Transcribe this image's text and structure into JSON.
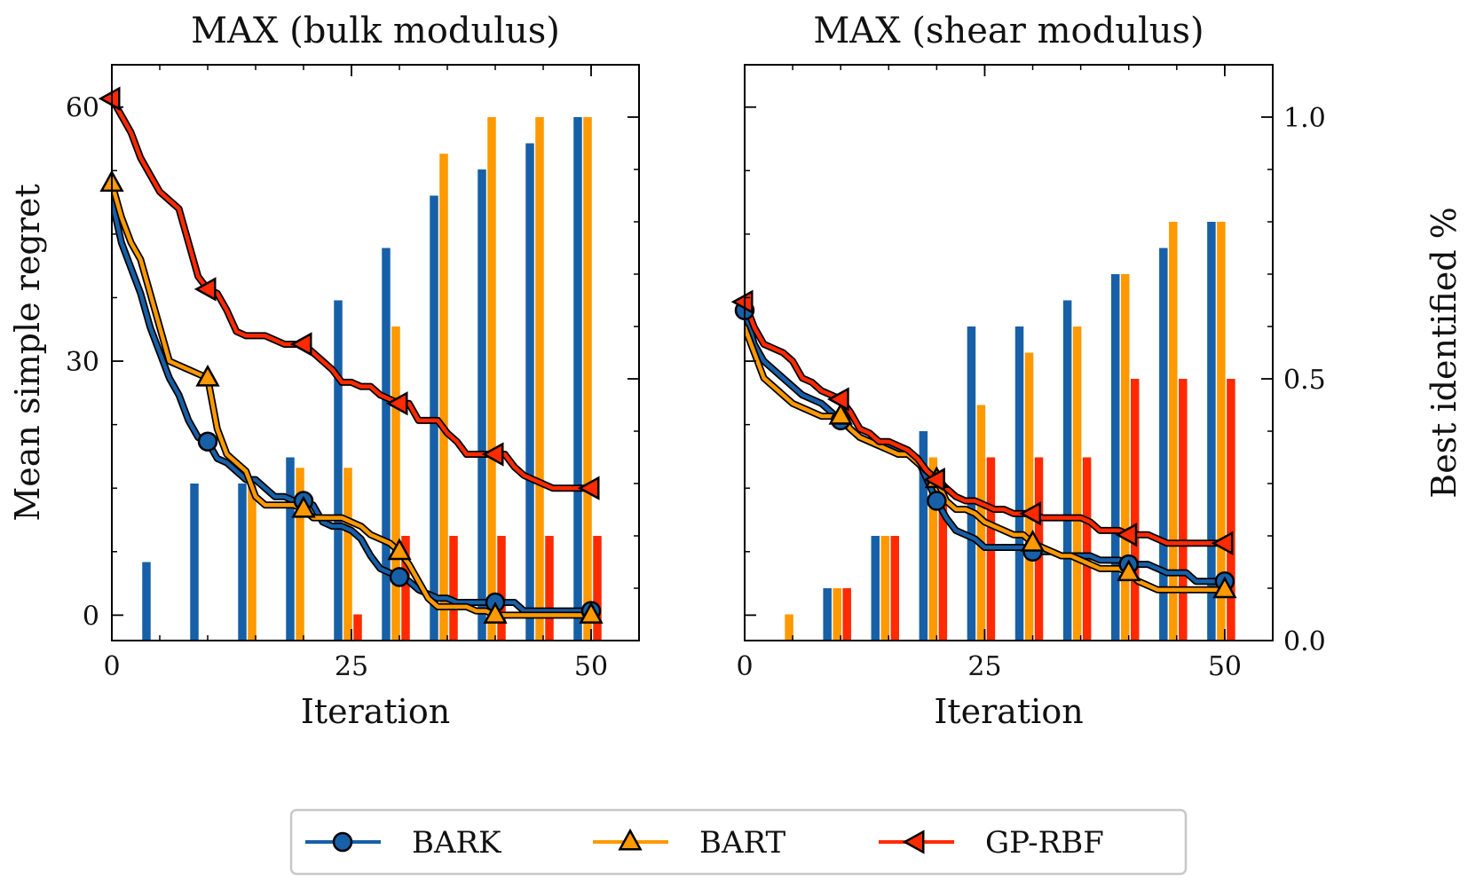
{
  "colors": {
    "BARK": "#1760a8",
    "BART": "#ff9900",
    "GP-RBF": "#ff2a00",
    "frame": "#000000"
  },
  "legend": {
    "items": [
      "BARK",
      "BART",
      "GP-RBF"
    ]
  },
  "chart_data": [
    {
      "type": "line+bar",
      "title": "MAX (bulk modulus)",
      "xlabel": "Iteration",
      "ylabel": "Mean simple regret",
      "xlim": [
        0,
        55
      ],
      "ylim": [
        -3,
        65
      ],
      "xticks": [
        0,
        25,
        50
      ],
      "yticks": [
        0,
        30,
        60
      ],
      "bar_ylim": [
        0,
        1.1
      ],
      "bar_x": [
        5,
        10,
        15,
        20,
        25,
        30,
        35,
        40,
        45,
        50
      ],
      "series": [
        {
          "name": "BARK",
          "marker": "circle",
          "marker_x": [
            10,
            20,
            30,
            40,
            50
          ],
          "x": [
            0,
            1,
            2,
            3,
            4,
            5,
            6,
            7,
            8,
            9,
            10,
            11,
            12,
            13,
            14,
            15,
            16,
            17,
            18,
            19,
            20,
            21,
            22,
            23,
            24,
            25,
            26,
            27,
            28,
            29,
            30,
            31,
            32,
            33,
            34,
            35,
            36,
            37,
            38,
            39,
            40,
            41,
            42,
            43,
            44,
            45,
            46,
            47,
            48,
            49,
            50
          ],
          "values": [
            49,
            44,
            41,
            38,
            34,
            31,
            28,
            26,
            23,
            21,
            20.5,
            18.5,
            18,
            17,
            16,
            16,
            15,
            14,
            14,
            13.5,
            13.5,
            13,
            11,
            10.5,
            10.5,
            10,
            9,
            7,
            5.5,
            5,
            4.5,
            4,
            3,
            2.5,
            2,
            2,
            1.5,
            1.5,
            1.5,
            1.5,
            1.5,
            1.5,
            1.5,
            0.5,
            0.5,
            0.5,
            0.5,
            0.5,
            0.5,
            0.5,
            0.5
          ],
          "bars": [
            0.15,
            0.3,
            0.3,
            0.35,
            0.65,
            0.75,
            0.85,
            0.9,
            0.95,
            1.0
          ]
        },
        {
          "name": "BART",
          "marker": "triangle-up",
          "marker_x": [
            0,
            10,
            20,
            30,
            40,
            50
          ],
          "x": [
            0,
            1,
            2,
            3,
            4,
            5,
            6,
            7,
            8,
            9,
            10,
            11,
            12,
            13,
            14,
            15,
            16,
            17,
            18,
            19,
            20,
            21,
            22,
            23,
            24,
            25,
            26,
            27,
            28,
            29,
            30,
            31,
            32,
            33,
            34,
            35,
            36,
            37,
            38,
            39,
            40,
            41,
            42,
            43,
            44,
            45,
            46,
            47,
            48,
            49,
            50
          ],
          "values": [
            51,
            47,
            44,
            42,
            38,
            34,
            30,
            29.5,
            29,
            28.5,
            28,
            22,
            19,
            18,
            17,
            14,
            13,
            13,
            13,
            13,
            12.5,
            11.5,
            11.5,
            11.5,
            11.5,
            11,
            10.5,
            9.5,
            9,
            8.5,
            7.5,
            6,
            4,
            2,
            1,
            1,
            1,
            1,
            0.5,
            0.5,
            0,
            0,
            0,
            0,
            0,
            0,
            0,
            0,
            0,
            0,
            0
          ],
          "bars": [
            0,
            0,
            0.3,
            0.33,
            0.33,
            0.6,
            0.93,
            1.0,
            1.0,
            1.0
          ]
        },
        {
          "name": "GP-RBF",
          "marker": "triangle-left",
          "marker_x": [
            0,
            10,
            20,
            30,
            40,
            50
          ],
          "x": [
            0,
            1,
            2,
            3,
            4,
            5,
            6,
            7,
            8,
            9,
            10,
            11,
            12,
            13,
            14,
            15,
            16,
            17,
            18,
            19,
            20,
            21,
            22,
            23,
            24,
            25,
            26,
            27,
            28,
            29,
            30,
            31,
            32,
            33,
            34,
            35,
            36,
            37,
            38,
            39,
            40,
            41,
            42,
            43,
            44,
            45,
            46,
            47,
            48,
            49,
            50
          ],
          "values": [
            61,
            59,
            57,
            54,
            52,
            50,
            49,
            48,
            44,
            40,
            38.5,
            38,
            36,
            33.5,
            33,
            33,
            33,
            32.5,
            32,
            32,
            32,
            31,
            30,
            29,
            27.5,
            27.5,
            27,
            27,
            26,
            25.5,
            25,
            25,
            23,
            23,
            23,
            21.5,
            20.5,
            19,
            19,
            19,
            19,
            19,
            17.5,
            16.5,
            16,
            15.5,
            15,
            15,
            15,
            15,
            15
          ],
          "bars": [
            0,
            0,
            0,
            0,
            0.05,
            0.2,
            0.2,
            0.2,
            0.2,
            0.2
          ]
        }
      ]
    },
    {
      "type": "line+bar",
      "title": "MAX (shear modulus)",
      "xlabel": "Iteration",
      "ylabel2": "Best identified %",
      "xlim": [
        0,
        55
      ],
      "ylim": [
        -3,
        65
      ],
      "xticks": [
        0,
        25,
        50
      ],
      "bar_ylim": [
        0,
        1.1
      ],
      "bar_yticks": [
        "0.0",
        "0.5",
        "1.0"
      ],
      "bar_x": [
        5,
        10,
        15,
        20,
        25,
        30,
        35,
        40,
        45,
        50
      ],
      "series": [
        {
          "name": "BARK",
          "marker": "circle",
          "marker_x": [
            0,
            10,
            20,
            30,
            40,
            50
          ],
          "x": [
            0,
            1,
            2,
            3,
            4,
            5,
            6,
            7,
            8,
            9,
            10,
            11,
            12,
            13,
            14,
            15,
            16,
            17,
            18,
            19,
            20,
            21,
            22,
            23,
            24,
            25,
            26,
            27,
            28,
            29,
            30,
            31,
            32,
            33,
            34,
            35,
            36,
            37,
            38,
            39,
            40,
            41,
            42,
            43,
            44,
            45,
            46,
            47,
            48,
            49,
            50
          ],
          "values": [
            36,
            32,
            30,
            29,
            28,
            27,
            26,
            25.5,
            25,
            24,
            23,
            22,
            21,
            20.5,
            20,
            20,
            19.5,
            19,
            18.5,
            16,
            13.5,
            11.5,
            10,
            9.5,
            9,
            8,
            8,
            8,
            8,
            8,
            7.5,
            7.5,
            7.5,
            7,
            7,
            7,
            7,
            6.5,
            6.5,
            6.5,
            6,
            6,
            6,
            5.5,
            5,
            5,
            5,
            4,
            4,
            4,
            4
          ],
          "bars": [
            0,
            0.1,
            0.2,
            0.4,
            0.6,
            0.6,
            0.65,
            0.7,
            0.75,
            0.8
          ]
        },
        {
          "name": "BART",
          "marker": "triangle-up",
          "marker_x": [
            10,
            20,
            30,
            40,
            50
          ],
          "x": [
            0,
            1,
            2,
            3,
            4,
            5,
            6,
            7,
            8,
            9,
            10,
            11,
            12,
            13,
            14,
            15,
            16,
            17,
            18,
            19,
            20,
            21,
            22,
            23,
            24,
            25,
            26,
            27,
            28,
            29,
            30,
            31,
            32,
            33,
            34,
            35,
            36,
            37,
            38,
            39,
            40,
            41,
            42,
            43,
            44,
            45,
            46,
            47,
            48,
            49,
            50
          ],
          "values": [
            34,
            31,
            28,
            27,
            26,
            25,
            24.5,
            24,
            23.5,
            23.5,
            23.5,
            22,
            21,
            20.5,
            20,
            19.5,
            19,
            19,
            18,
            17,
            16,
            13.5,
            12.5,
            12.5,
            12,
            11,
            10.5,
            10,
            9.5,
            9.5,
            8.5,
            8,
            7.5,
            7,
            7,
            6.5,
            6,
            5.5,
            5.5,
            5.5,
            5,
            4,
            3.5,
            3,
            3,
            3,
            3,
            3,
            3,
            3,
            3
          ],
          "bars": [
            0.05,
            0.1,
            0.2,
            0.35,
            0.45,
            0.55,
            0.6,
            0.7,
            0.8,
            0.8
          ]
        },
        {
          "name": "GP-RBF",
          "marker": "triangle-left",
          "marker_x": [
            0,
            10,
            20,
            30,
            40,
            50
          ],
          "x": [
            0,
            1,
            2,
            3,
            4,
            5,
            6,
            7,
            8,
            9,
            10,
            11,
            12,
            13,
            14,
            15,
            16,
            17,
            18,
            19,
            20,
            21,
            22,
            23,
            24,
            25,
            26,
            27,
            28,
            29,
            30,
            31,
            32,
            33,
            34,
            35,
            36,
            37,
            38,
            39,
            40,
            41,
            42,
            43,
            44,
            45,
            46,
            47,
            48,
            49,
            50
          ],
          "values": [
            37,
            34,
            32,
            31.5,
            31,
            30,
            28,
            27.5,
            26.5,
            26,
            25.5,
            24,
            22,
            21.5,
            20.5,
            20.5,
            20,
            19.5,
            18.5,
            17,
            16,
            15,
            14,
            13.5,
            13.5,
            13,
            12.5,
            12.5,
            12,
            12,
            12,
            11.5,
            11.5,
            11.5,
            11.5,
            11.5,
            11,
            10,
            10,
            10,
            9.5,
            9.5,
            9.5,
            9,
            8.5,
            8.5,
            8.5,
            8.5,
            8.5,
            8.5,
            8.5
          ],
          "bars": [
            0,
            0.1,
            0.2,
            0.3,
            0.35,
            0.35,
            0.35,
            0.5,
            0.5,
            0.5
          ]
        }
      ]
    }
  ]
}
